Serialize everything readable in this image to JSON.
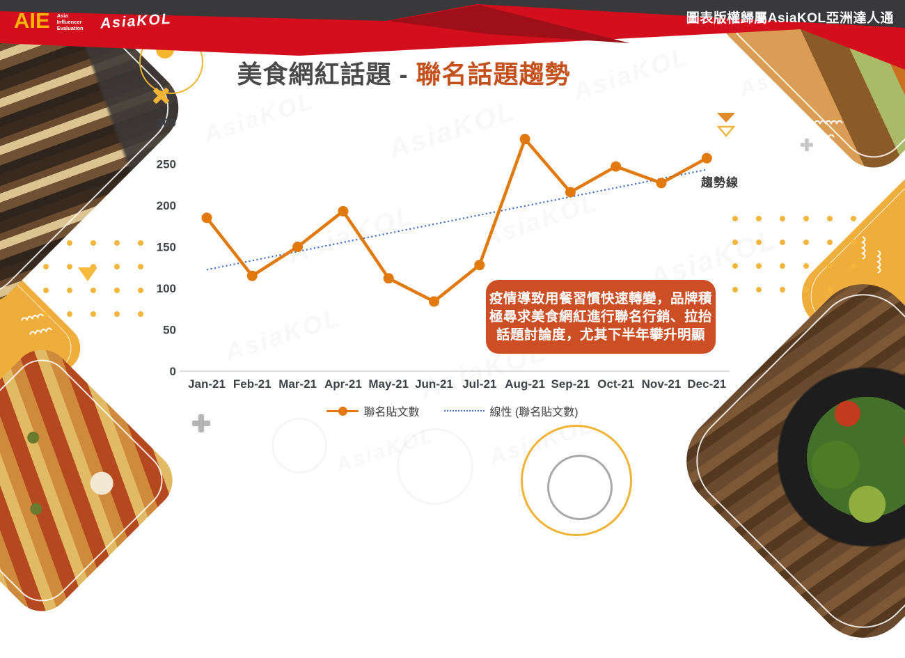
{
  "header": {
    "logo_aie": "AIE",
    "logo_sub_lines": [
      "Asia",
      "Influencer",
      "Evaluation"
    ],
    "logo_asiakol": "AsiaKOL",
    "copyright": "圖表版權歸屬AsiaKOL亞洲達人通"
  },
  "title": {
    "prefix": "美食網紅話題 - ",
    "highlight": "聯名話題趨勢"
  },
  "watermark_text": "AsiaKOL",
  "trend_label": "趨勢線",
  "annotation": {
    "lines": [
      "疫情導致用餐習慣快速轉變，品牌積",
      "極尋求美食網紅進行聯名行銷、拉抬",
      "話題討論度，尤其下半年攀升明顯"
    ],
    "text": "疫情導致用餐習慣快速轉變，品牌積極尋求美食網紅進行聯名行銷、拉抬話題討論度，尤其下半年攀升明顯"
  },
  "chart_data": {
    "type": "line",
    "title": "美食網紅話題 - 聯名話題趨勢",
    "categories": [
      "Jan-21",
      "Feb-21",
      "Mar-21",
      "Apr-21",
      "May-21",
      "Jun-21",
      "Jul-21",
      "Aug-21",
      "Sep-21",
      "Oct-21",
      "Nov-21",
      "Dec-21"
    ],
    "series": [
      {
        "name": "聯名貼文數",
        "type": "line",
        "color": "#E2790C",
        "values": [
          185,
          115,
          150,
          193,
          112,
          84,
          128,
          280,
          216,
          247,
          227,
          257
        ]
      },
      {
        "name": "線性 (聯名貼文數)",
        "type": "linear-trendline",
        "style": "dotted",
        "color": "#4472C4",
        "of_series": "聯名貼文數"
      }
    ],
    "xlabel": "",
    "ylabel": "",
    "ylim": [
      0,
      300
    ],
    "yticks": [
      0,
      50,
      100,
      150,
      200,
      250,
      300
    ],
    "grid": false,
    "legend_position": "bottom"
  },
  "colors": {
    "header_dark": "#39393B",
    "header_red": "#D40F1D",
    "header_red_dark": "#9E1018",
    "logo_yellow": "#F7B500",
    "title_gray": "#4A4A4A",
    "title_orange": "#C4511C",
    "series_orange": "#E2790C",
    "trendline_blue": "#4472C4",
    "annotation_bg": "#CB4E25",
    "decor_yellow": "#F2B437",
    "axis_text": "#3F4349"
  },
  "decor_icons": [
    "x-icon",
    "triangle-down-icon",
    "circle-outline-icon",
    "plus-icon",
    "dots-pattern",
    "zigzag-icon"
  ]
}
